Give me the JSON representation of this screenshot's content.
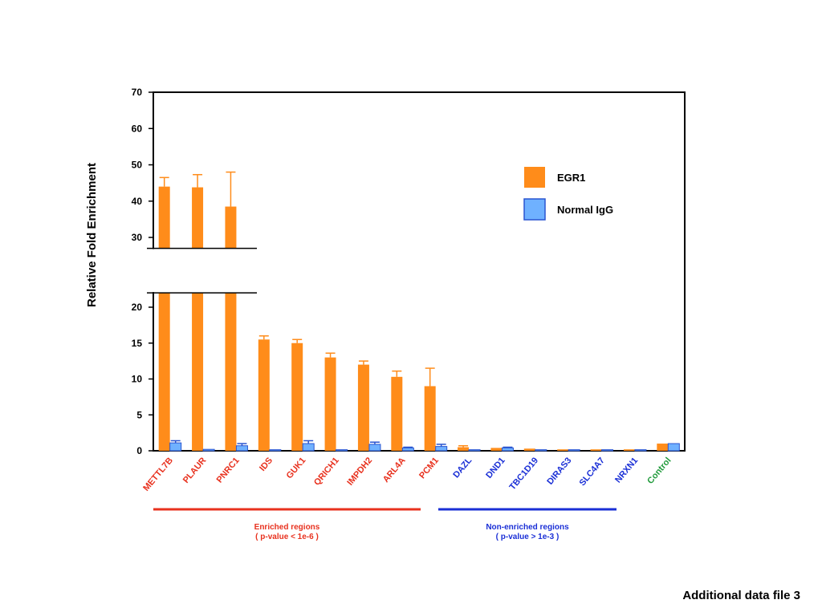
{
  "chart_data": {
    "type": "bar",
    "ylabel": "Relative Fold Enrichment",
    "y_axis_break": [
      22,
      27
    ],
    "ylim": [
      0,
      70
    ],
    "yticks": [
      0,
      5,
      10,
      15,
      20,
      30,
      40,
      50,
      60,
      70
    ],
    "categories": [
      "METTL7B",
      "PLAUR",
      "PNRC1",
      "IDS",
      "GUK1",
      "QRICH1",
      "IMPDH2",
      "ARL4A",
      "PCM1",
      "DAZL",
      "DND1",
      "TBC1D19",
      "DIRAS3",
      "SLC4A7",
      "NRXN1",
      "Control"
    ],
    "category_colors": [
      "#e8311e",
      "#e8311e",
      "#e8311e",
      "#e8311e",
      "#e8311e",
      "#e8311e",
      "#e8311e",
      "#e8311e",
      "#e8311e",
      "#1a2fd6",
      "#1a2fd6",
      "#1a2fd6",
      "#1a2fd6",
      "#1a2fd6",
      "#1a2fd6",
      "#1f9a3a"
    ],
    "series": [
      {
        "name": "EGR1",
        "color": "#ff8c1a",
        "values": [
          44,
          43.8,
          38.5,
          15.5,
          15,
          13,
          12,
          10.3,
          9,
          0.5,
          0.4,
          0.3,
          0.2,
          0.2,
          0.2,
          1
        ],
        "errors": [
          2.5,
          3.5,
          9.5,
          0.5,
          0.5,
          0.6,
          0.5,
          0.8,
          2.5,
          0.2,
          0.05,
          0.05,
          0.05,
          0.05,
          0.05,
          0
        ]
      },
      {
        "name": "Normal IgG",
        "color": "#6fb1ff",
        "values": [
          1.1,
          0.2,
          0.7,
          0.15,
          1,
          0.15,
          0.9,
          0.4,
          0.6,
          0.15,
          0.4,
          0.15,
          0.15,
          0.15,
          0.15,
          1
        ],
        "errors": [
          0.3,
          0.05,
          0.3,
          0.05,
          0.4,
          0.05,
          0.3,
          0.1,
          0.3,
          0.05,
          0.1,
          0.05,
          0.05,
          0.05,
          0.05,
          0
        ]
      }
    ],
    "legend_position": "top-right",
    "group_brackets": [
      {
        "label": "Enriched regions",
        "sublabel": "( p-value < 1e-6 )",
        "color": "#e8311e",
        "from": 0,
        "to": 8
      },
      {
        "label": "Non-enriched regions",
        "sublabel": "( p-value > 1e-3 )",
        "color": "#1a2fd6",
        "from": 9,
        "to": 14
      }
    ]
  },
  "footer": "Additional data file 3"
}
